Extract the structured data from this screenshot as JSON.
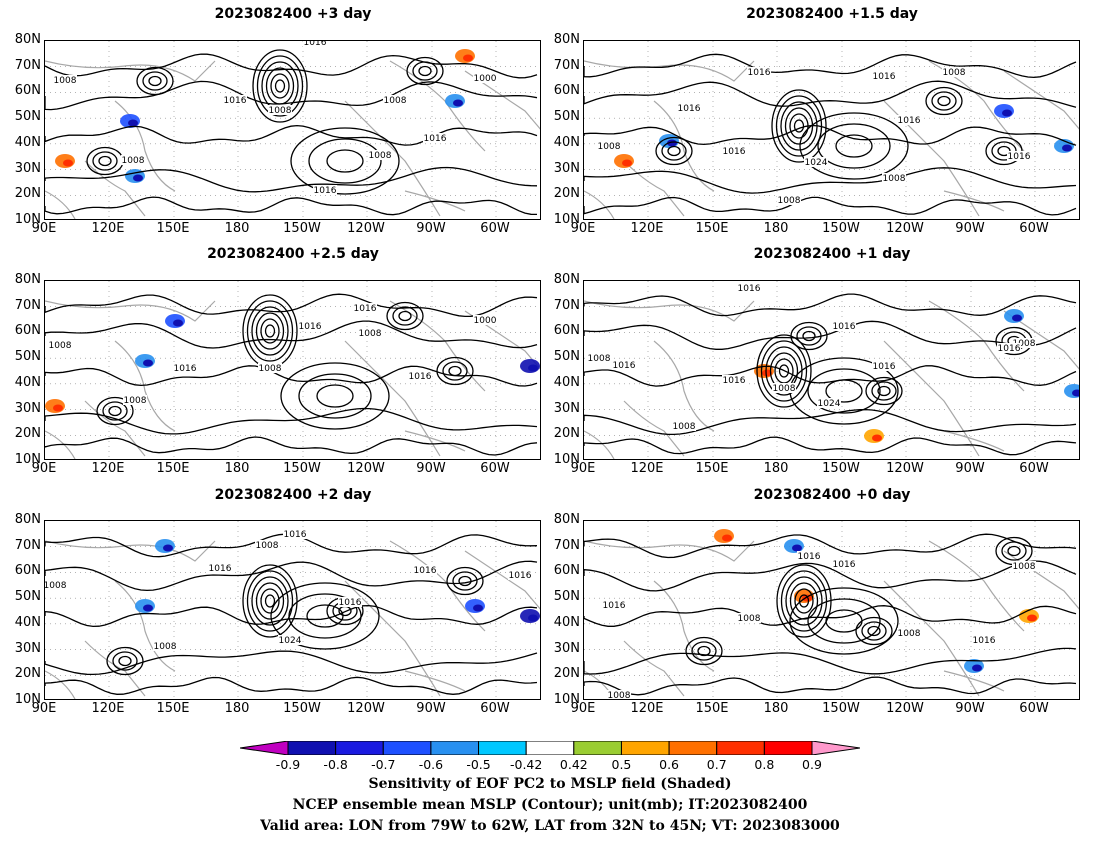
{
  "panels": [
    {
      "title": "2023082400 +3 day"
    },
    {
      "title": "2023082400 +1.5 day"
    },
    {
      "title": "2023082400 +2.5 day"
    },
    {
      "title": "2023082400 +1 day"
    },
    {
      "title": "2023082400 +2 day"
    },
    {
      "title": "2023082400 +0 day"
    }
  ],
  "axes": {
    "lat_labels": [
      "80N",
      "70N",
      "60N",
      "50N",
      "40N",
      "30N",
      "20N",
      "10N"
    ],
    "lon_labels": [
      "90E",
      "120E",
      "150E",
      "180",
      "150W",
      "120W",
      "90W",
      "60W"
    ]
  },
  "contour_labels": [
    "1000",
    "1008",
    "1016",
    "1024"
  ],
  "colorbar": {
    "labels": [
      "-0.9",
      "-0.8",
      "-0.7",
      "-0.6",
      "-0.5",
      "-0.42",
      "0.42",
      "0.5",
      "0.6",
      "0.7",
      "0.8",
      "0.9"
    ],
    "colors": [
      "#c000c0",
      "#1010b0",
      "#1a1ae0",
      "#1e50ff",
      "#2890f0",
      "#00c8ff",
      "#ffffff",
      "#9acd32",
      "#ffa500",
      "#ff7000",
      "#ff3000",
      "#ff0000",
      "#ff99cc"
    ]
  },
  "caption": {
    "line1": "Sensitivity of EOF PC2 to MSLP field (Shaded)",
    "line2": "NCEP ensemble mean MSLP (Contour); unit(mb); IT:2023082400",
    "line3": "Valid area: LON from 79W to 62W, LAT from 32N to 45N; VT: 2023083000"
  }
}
